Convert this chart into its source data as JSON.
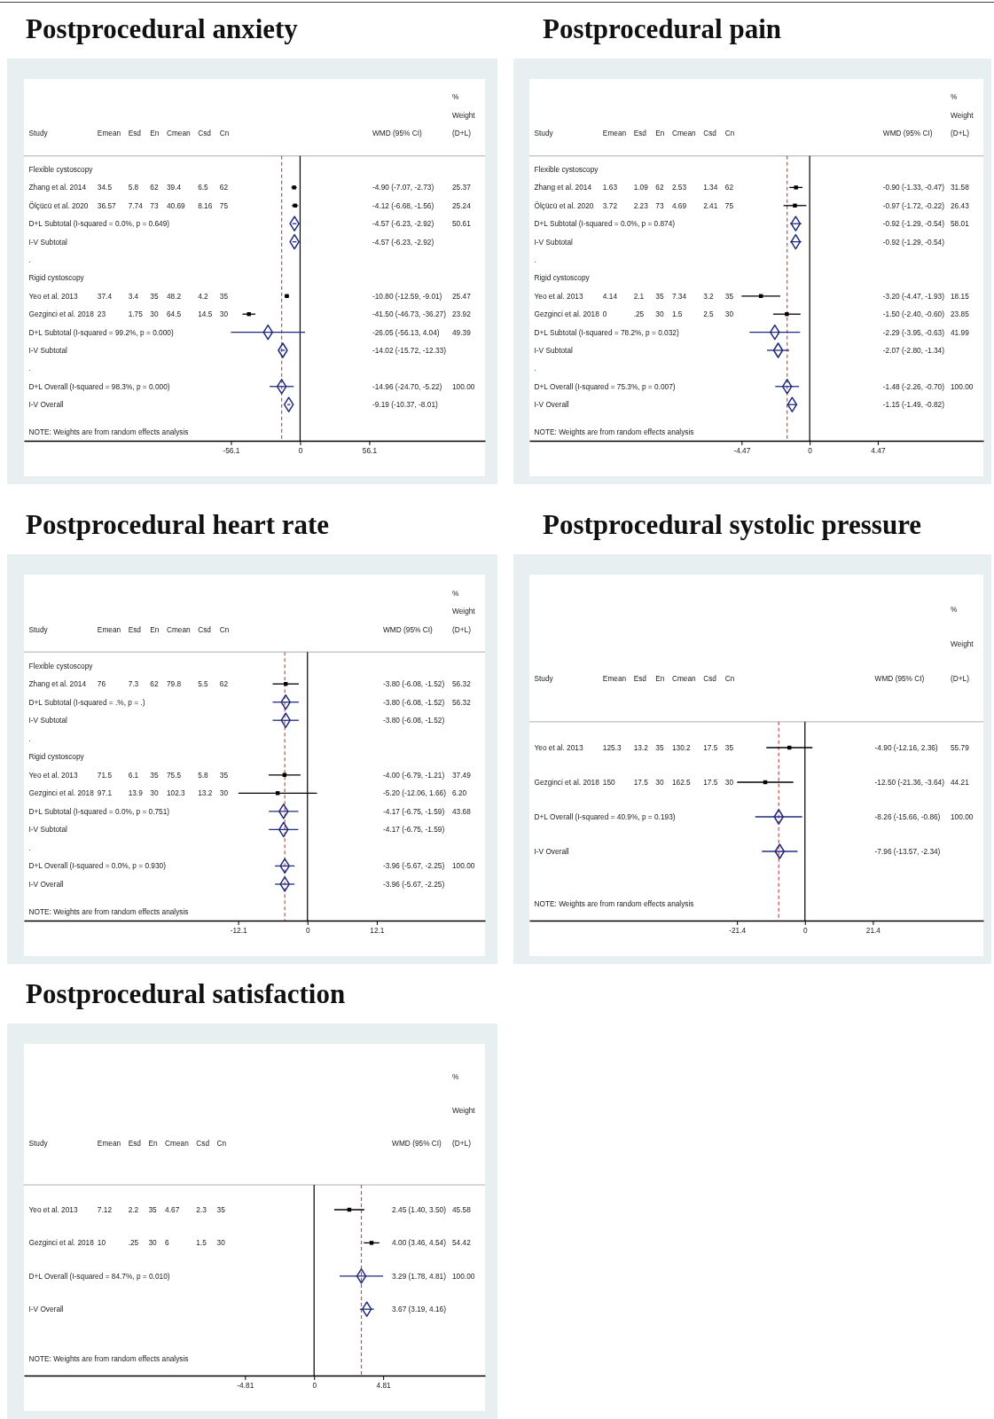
{
  "chart_data": [
    {
      "type": "scatter",
      "orientation": "horizontal",
      "title": "Postprocedural anxiety",
      "marker": "square",
      "categories": [
        "Flexible cystoscopy",
        "Zhang et al. 2014",
        "Ölçücü et al. 2020",
        "D+L Subtotal (I-squared = 0.0%, p = 0.649)",
        "I-V Subtotal",
        ".",
        "Rigid cystoscopy",
        "Yeo et al. 2013",
        "Gezginci et al. 2018",
        "D+L Subtotal (I-squared = 99.2%, p = 0.000)",
        "I-V Subtotal",
        ".",
        "D+L Overall (I-squared = 98.3%, p = 0.000)",
        "I-V Overall"
      ],
      "xlim": [
        -224,
        150
      ],
      "xticks": [
        -56.1,
        0,
        56.1
      ],
      "series": [
        {
          "color": "#000000",
          "values": [
            null,
            -4.9,
            -4.12,
            null,
            null,
            null,
            null,
            -10.8,
            -41.5,
            null,
            null,
            null,
            null,
            null
          ],
          "errors": [
            null,
            [
              -7.07,
              -2.73
            ],
            [
              -6.68,
              -1.56
            ],
            null,
            null,
            null,
            null,
            [
              -12.59,
              -9.01
            ],
            [
              -46.73,
              -36.27
            ],
            null,
            null,
            null,
            null,
            null
          ]
        },
        {
          "color": "#1f2a7d",
          "marker": "diamond",
          "values": [
            null,
            null,
            null,
            -4.57,
            null,
            null,
            null,
            null,
            null,
            -26.05,
            null,
            null,
            -14.96,
            null
          ],
          "errors": [
            null,
            null,
            null,
            [
              -6.23,
              -2.92
            ],
            null,
            null,
            null,
            null,
            null,
            [
              -56.13,
              4.04
            ],
            null,
            null,
            [
              -24.7,
              -5.22
            ],
            null
          ]
        },
        {
          "color": "#1f2a7d",
          "marker": "diamond",
          "values": [
            null,
            null,
            null,
            null,
            -4.57,
            null,
            null,
            null,
            null,
            null,
            -14.02,
            null,
            null,
            -9.19
          ],
          "errors": [
            null,
            null,
            null,
            null,
            [
              -6.23,
              -2.92
            ],
            null,
            null,
            null,
            null,
            null,
            [
              -15.72,
              -12.33
            ],
            null,
            null,
            [
              -10.37,
              -8.01
            ]
          ]
        }
      ],
      "ref_lines": [
        {
          "axis": "x",
          "value": 0,
          "color": "#000000",
          "line_style": "solid"
        },
        {
          "axis": "x",
          "value": -14.96,
          "color": "#c0504d",
          "line_style": "dashed"
        }
      ],
      "annotations": [
        "%",
        "Weight",
        "Study",
        "Emean",
        "Esd",
        "En",
        "Cmean",
        "Csd",
        "Cn",
        "WMD (95% CI)",
        "(D+L)",
        "34.5",
        "5.8",
        "62",
        "39.4",
        "6.5",
        "62",
        "-4.90 (-7.07, -2.73)",
        "25.37",
        "36.57",
        "7.74",
        "73",
        "40.69",
        "8.16",
        "75",
        "-4.12 (-6.68, -1.56)",
        "25.24",
        "-4.57 (-6.23, -2.92)",
        "50.61",
        "-4.57 (-6.23, -2.92)",
        "37.4",
        "3.4",
        "35",
        "48.2",
        "4.2",
        "35",
        "-10.80 (-12.59, -9.01)",
        "25.47",
        "23",
        "1.75",
        "30",
        "64.5",
        "14.5",
        "30",
        "-41.50 (-46.73, -36.27)",
        "23.92",
        "-26.05 (-56.13, 4.04)",
        "49.39",
        "-14.02 (-15.72, -12.33)",
        "-14.96 (-24.70, -5.22)",
        "100.00",
        "-9.19 (-10.37, -8.01)",
        "NOTE: Weights are from random effects analysis"
      ]
    },
    {
      "type": "scatter",
      "orientation": "horizontal",
      "title": "Postprocedural pain",
      "marker": "square",
      "categories": [
        "Flexible cystoscopy",
        "Zhang et al. 2014",
        "Ölçücü et al. 2020",
        "D+L Subtotal (I-squared = 0.0%, p = 0.874)",
        "I-V Subtotal",
        ".",
        "Rigid cystoscopy",
        "Yeo et al. 2013",
        "Gezginci et al. 2018",
        "D+L Subtotal (I-squared = 78.2%, p = 0.032)",
        "I-V Subtotal",
        ".",
        "D+L Overall (I-squared = 75.3%, p = 0.007)",
        "I-V Overall"
      ],
      "xlim": [
        -18.4,
        11.4
      ],
      "xticks": [
        -4.47,
        0,
        4.47
      ],
      "series": [
        {
          "color": "#000000",
          "values": [
            null,
            -0.9,
            -0.97,
            null,
            null,
            null,
            null,
            -3.2,
            -1.5,
            null,
            null,
            null,
            null,
            null
          ],
          "errors": [
            null,
            [
              -1.33,
              -0.47
            ],
            [
              -1.72,
              -0.22
            ],
            null,
            null,
            null,
            null,
            [
              -4.47,
              -1.93
            ],
            [
              -2.4,
              -0.6
            ],
            null,
            null,
            null,
            null,
            null
          ]
        },
        {
          "color": "#1f2a7d",
          "marker": "diamond",
          "values": [
            null,
            null,
            null,
            -0.92,
            null,
            null,
            null,
            null,
            null,
            -2.29,
            null,
            null,
            -1.48,
            null
          ],
          "errors": [
            null,
            null,
            null,
            [
              -1.29,
              -0.54
            ],
            null,
            null,
            null,
            null,
            null,
            [
              -3.95,
              -0.63
            ],
            null,
            null,
            [
              -2.26,
              -0.7
            ],
            null
          ]
        },
        {
          "color": "#1f2a7d",
          "marker": "diamond",
          "values": [
            null,
            null,
            null,
            null,
            -0.92,
            null,
            null,
            null,
            null,
            null,
            -2.07,
            null,
            null,
            -1.15
          ],
          "errors": [
            null,
            null,
            null,
            null,
            [
              -1.29,
              -0.54
            ],
            null,
            null,
            null,
            null,
            null,
            [
              -2.8,
              -1.34
            ],
            null,
            null,
            [
              -1.49,
              -0.82
            ]
          ]
        }
      ],
      "ref_lines": [
        {
          "axis": "x",
          "value": 0,
          "color": "#000000",
          "line_style": "solid"
        },
        {
          "axis": "x",
          "value": -1.48,
          "color": "#c0504d",
          "line_style": "dashed"
        }
      ],
      "annotations": [
        "%",
        "Weight",
        "Study",
        "Emean",
        "Esd",
        "En",
        "Cmean",
        "Csd",
        "Cn",
        "WMD (95% CI)",
        "(D+L)",
        "1.63",
        "1.09",
        "62",
        "2.53",
        "1.34",
        "62",
        "-0.90 (-1.33, -0.47)",
        "31.58",
        "3.72",
        "2.23",
        "73",
        "4.69",
        "2.41",
        "75",
        "-0.97 (-1.72, -0.22)",
        "26.43",
        "-0.92 (-1.29, -0.54)",
        "58.01",
        "-0.92 (-1.29, -0.54)",
        "4.14",
        "2.1",
        "35",
        "7.34",
        "3.2",
        "35",
        "-3.20 (-4.47, -1.93)",
        "18.15",
        "0",
        ".25",
        "30",
        "1.5",
        "2.5",
        "30",
        "-1.50 (-2.40, -0.60)",
        "23.85",
        "-2.29 (-3.95, -0.63)",
        "41.99",
        "-2.07 (-2.80, -1.34)",
        "-1.48 (-2.26, -0.70)",
        "100.00",
        "-1.15 (-1.49, -0.82)",
        "NOTE: Weights are from random effects analysis"
      ]
    },
    {
      "type": "scatter",
      "orientation": "horizontal",
      "title": "Postprocedural heart rate",
      "marker": "square",
      "categories": [
        "Flexible cystoscopy",
        "Zhang et al. 2014",
        "D+L Subtotal (I-squared = .%, p = .)",
        "I-V Subtotal",
        ".",
        "Rigid cystoscopy",
        "Yeo et al. 2013",
        "Gezginci et al. 2018",
        "D+L Subtotal (I-squared = 0.0%, p = 0.751)",
        "I-V Subtotal",
        ".",
        "D+L Overall (I-squared = 0.0%, p = 0.930)",
        "I-V Overall"
      ],
      "xlim": [
        -49.5,
        31
      ],
      "xticks": [
        -12.1,
        0,
        12.1
      ],
      "series": [
        {
          "color": "#000000",
          "values": [
            null,
            -3.8,
            null,
            null,
            null,
            null,
            -4.0,
            -5.2,
            null,
            null,
            null,
            null,
            null
          ],
          "errors": [
            null,
            [
              -6.08,
              -1.52
            ],
            null,
            null,
            null,
            null,
            [
              -6.79,
              -1.21
            ],
            [
              -12.06,
              1.66
            ],
            null,
            null,
            null,
            null,
            null
          ]
        },
        {
          "color": "#1f2a7d",
          "marker": "diamond",
          "values": [
            null,
            null,
            -3.8,
            null,
            null,
            null,
            null,
            null,
            -4.17,
            null,
            null,
            -3.96,
            null
          ],
          "errors": [
            null,
            null,
            [
              -6.08,
              -1.52
            ],
            null,
            null,
            null,
            null,
            null,
            [
              -6.75,
              -1.59
            ],
            null,
            null,
            [
              -5.67,
              -2.25
            ],
            null
          ]
        },
        {
          "color": "#1f2a7d",
          "marker": "diamond",
          "values": [
            null,
            null,
            null,
            -3.8,
            null,
            null,
            null,
            null,
            null,
            -4.17,
            null,
            null,
            -3.96
          ],
          "errors": [
            null,
            null,
            null,
            [
              -6.08,
              -1.52
            ],
            null,
            null,
            null,
            null,
            null,
            [
              -6.75,
              -1.59
            ],
            null,
            null,
            [
              -5.67,
              -2.25
            ]
          ]
        }
      ],
      "ref_lines": [
        {
          "axis": "x",
          "value": 0,
          "color": "#000000",
          "line_style": "solid"
        },
        {
          "axis": "x",
          "value": -3.96,
          "color": "#c0504d",
          "line_style": "dashed"
        }
      ],
      "annotations": [
        "%",
        "Weight",
        "Study",
        "Emean",
        "Esd",
        "En",
        "Cmean",
        "Csd",
        "Cn",
        "WMD (95% CI)",
        "(D+L)",
        "76",
        "7.3",
        "62",
        "79.8",
        "5.5",
        "62",
        "-3.80 (-6.08, -1.52)",
        "56.32",
        "-3.80 (-6.08, -1.52)",
        "56.32",
        "-3.80 (-6.08, -1.52)",
        "71.5",
        "6.1",
        "35",
        "75.5",
        "5.8",
        "35",
        "-4.00 (-6.79, -1.21)",
        "37.49",
        "97.1",
        "13.9",
        "30",
        "102.3",
        "13.2",
        "30",
        "-5.20 (-12.06, 1.66)",
        "6.20",
        "-4.17 (-6.75, -1.59)",
        "43.68",
        "-4.17 (-6.75, -1.59)",
        "-3.96 (-5.67, -2.25)",
        "100.00",
        "-3.96 (-5.67, -2.25)",
        "NOTE: Weights are from random effects analysis"
      ]
    },
    {
      "type": "scatter",
      "orientation": "horizontal",
      "title": "Postprocedural systolic pressure",
      "marker": "square",
      "categories": [
        "Yeo et al. 2013",
        "Gezginci et al. 2018",
        "D+L Overall (I-squared = 40.9%, p = 0.193)",
        "I-V Overall"
      ],
      "xlim": [
        -86.8,
        56.2
      ],
      "xticks": [
        -21.4,
        0,
        21.4
      ],
      "series": [
        {
          "color": "#000000",
          "values": [
            -4.9,
            -12.5,
            null,
            null
          ],
          "errors": [
            [
              -12.16,
              2.36
            ],
            [
              -21.36,
              -3.64
            ],
            null,
            null
          ]
        },
        {
          "color": "#1f2a7d",
          "marker": "diamond",
          "values": [
            null,
            null,
            -8.26,
            null
          ],
          "errors": [
            null,
            null,
            [
              -15.66,
              -0.86
            ],
            null
          ]
        },
        {
          "color": "#1f2a7d",
          "marker": "diamond",
          "values": [
            null,
            null,
            null,
            -7.96
          ],
          "errors": [
            null,
            null,
            null,
            [
              -13.57,
              -2.34
            ]
          ]
        }
      ],
      "ref_lines": [
        {
          "axis": "x",
          "value": 0,
          "color": "#000000",
          "line_style": "solid"
        },
        {
          "axis": "x",
          "value": -8.26,
          "color": "#c0504d",
          "line_style": "dashed"
        }
      ],
      "annotations": [
        "%",
        "Weight",
        "Study",
        "Emean",
        "Esd",
        "En",
        "Cmean",
        "Csd",
        "Cn",
        "WMD (95% CI)",
        "(D+L)",
        "125.3",
        "13.2",
        "35",
        "130.2",
        "17.5",
        "35",
        "-4.90 (-12.16, 2.36)",
        "55.79",
        "150",
        "17.5",
        "30",
        "162.5",
        "17.5",
        "30",
        "-12.50 (-21.36, -3.64)",
        "44.21",
        "-8.26 (-15.66, -0.86)",
        "100.00",
        "-7.96 (-13.57, -2.34)",
        "NOTE: Weights are from random effects analysis"
      ]
    },
    {
      "type": "scatter",
      "orientation": "horizontal",
      "title": "Postprocedural satisfaction",
      "marker": "square",
      "categories": [
        "Yeo et al. 2013",
        "Gezginci et al. 2018",
        "D+L Overall (I-squared = 84.7%, p = 0.010)",
        "I-V Overall"
      ],
      "xlim": [
        -20.2,
        11.9
      ],
      "xticks": [
        -4.81,
        0,
        4.81
      ],
      "series": [
        {
          "color": "#000000",
          "values": [
            2.45,
            4.0,
            null,
            null
          ],
          "errors": [
            [
              1.4,
              3.5
            ],
            [
              3.46,
              4.54
            ],
            null,
            null
          ]
        },
        {
          "color": "#1f2a7d",
          "marker": "diamond",
          "values": [
            null,
            null,
            3.29,
            null
          ],
          "errors": [
            null,
            null,
            [
              1.78,
              4.81
            ],
            null
          ]
        },
        {
          "color": "#1f2a7d",
          "marker": "diamond",
          "values": [
            null,
            null,
            null,
            3.67
          ],
          "errors": [
            null,
            null,
            null,
            [
              3.19,
              4.16
            ]
          ]
        }
      ],
      "ref_lines": [
        {
          "axis": "x",
          "value": 0,
          "color": "#000000",
          "line_style": "solid"
        },
        {
          "axis": "x",
          "value": 3.29,
          "color": "#c0504d",
          "line_style": "dashed"
        }
      ],
      "annotations": [
        "%",
        "Weight",
        "Study",
        "Emean",
        "Esd",
        "En",
        "Cmean",
        "Csd",
        "Cn",
        "WMD (95% CI)",
        "(D+L)",
        "7.12",
        "2.2",
        "35",
        "4.67",
        "2.3",
        "35",
        "2.45 (1.40, 3.50)",
        "45.58",
        "10",
        ".25",
        "30",
        "6",
        "1.5",
        "30",
        "4.00 (3.46, 4.54)",
        "54.42",
        "3.29 (1.78, 4.81)",
        "100.00",
        "3.67 (3.19, 4.16)",
        "NOTE: Weights are from random effects analysis"
      ]
    }
  ]
}
